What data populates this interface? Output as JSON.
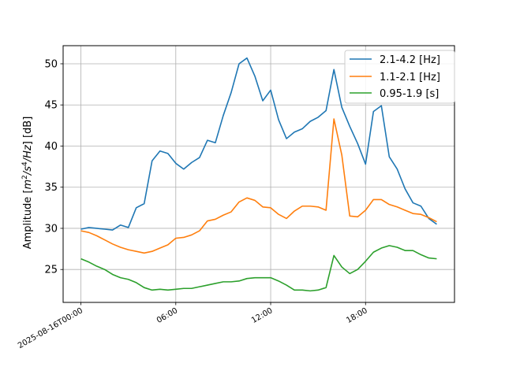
{
  "chart_data": {
    "type": "line",
    "ylabel": "Amplitude [m²/s⁴/Hz] [dB]",
    "ylabel_parts": {
      "prefix": "Amplitude [",
      "m": "m",
      "sup2": "2",
      "s": "/s",
      "sup4": "4",
      "hz": "/Hz",
      "suffix": "] [dB]"
    },
    "xlabel": "",
    "grid": true,
    "legend_position": "top-right",
    "x_unit": "hours since 2025-08-16T00:00",
    "xlim": [
      -1.125,
      23.625
    ],
    "ylim": [
      21.0,
      52.2
    ],
    "x_ticks": [
      {
        "value": 0,
        "label": "2025-08-16T00:00"
      },
      {
        "value": 6,
        "label": "06:00"
      },
      {
        "value": 12,
        "label": "12:00"
      },
      {
        "value": 18,
        "label": "18:00"
      }
    ],
    "y_ticks": [
      {
        "value": 25,
        "label": "25"
      },
      {
        "value": 30,
        "label": "30"
      },
      {
        "value": 35,
        "label": "35"
      },
      {
        "value": 40,
        "label": "40"
      },
      {
        "value": 45,
        "label": "45"
      },
      {
        "value": 50,
        "label": "50"
      }
    ],
    "x": [
      0,
      0.5,
      1,
      1.5,
      2,
      2.5,
      3,
      3.5,
      4,
      4.5,
      5,
      5.5,
      6,
      6.5,
      7,
      7.5,
      8,
      8.5,
      9,
      9.5,
      10,
      10.5,
      11,
      11.5,
      12,
      12.5,
      13,
      13.5,
      14,
      14.5,
      15,
      15.5,
      16,
      16.5,
      17,
      17.5,
      18,
      18.5,
      19,
      19.5,
      20,
      20.5,
      21,
      21.5,
      22,
      22.5
    ],
    "series": [
      {
        "name": "2.1-4.2 [Hz]",
        "color": "#1f77b4",
        "values": [
          29.9,
          30.1,
          30.0,
          29.9,
          29.8,
          30.4,
          30.1,
          32.5,
          33.0,
          38.2,
          39.4,
          39.1,
          37.9,
          37.2,
          38.0,
          38.6,
          40.7,
          40.4,
          43.7,
          46.5,
          50.0,
          50.7,
          48.5,
          45.5,
          46.8,
          43.2,
          40.9,
          41.7,
          42.1,
          43.0,
          43.5,
          44.3,
          49.3,
          44.7,
          42.4,
          40.3,
          37.8,
          44.2,
          44.9,
          38.7,
          37.2,
          34.8,
          33.1,
          32.7,
          31.2,
          30.5
        ]
      },
      {
        "name": "1.1-2.1 [Hz]",
        "color": "#ff7f0e",
        "values": [
          29.7,
          29.5,
          29.1,
          28.6,
          28.1,
          27.7,
          27.4,
          27.2,
          27.0,
          27.2,
          27.6,
          28.0,
          28.8,
          28.9,
          29.2,
          29.7,
          30.9,
          31.1,
          31.6,
          32.0,
          33.2,
          33.7,
          33.4,
          32.6,
          32.5,
          31.7,
          31.2,
          32.1,
          32.7,
          32.7,
          32.6,
          32.2,
          43.3,
          38.9,
          31.5,
          31.4,
          32.2,
          33.5,
          33.5,
          32.9,
          32.6,
          32.2,
          31.8,
          31.7,
          31.3,
          30.8
        ]
      },
      {
        "name": "0.95-1.9 [s]",
        "color": "#2ca02c",
        "values": [
          26.3,
          25.9,
          25.4,
          25.0,
          24.4,
          24.0,
          23.8,
          23.4,
          22.8,
          22.5,
          22.6,
          22.5,
          22.6,
          22.7,
          22.7,
          22.9,
          23.1,
          23.3,
          23.5,
          23.5,
          23.6,
          23.9,
          24.0,
          24.0,
          24.0,
          23.6,
          23.1,
          22.5,
          22.5,
          22.4,
          22.5,
          22.8,
          26.7,
          25.3,
          24.5,
          25.0,
          26.0,
          27.1,
          27.6,
          27.9,
          27.7,
          27.3,
          27.3,
          26.8,
          26.4,
          26.3
        ]
      }
    ]
  }
}
